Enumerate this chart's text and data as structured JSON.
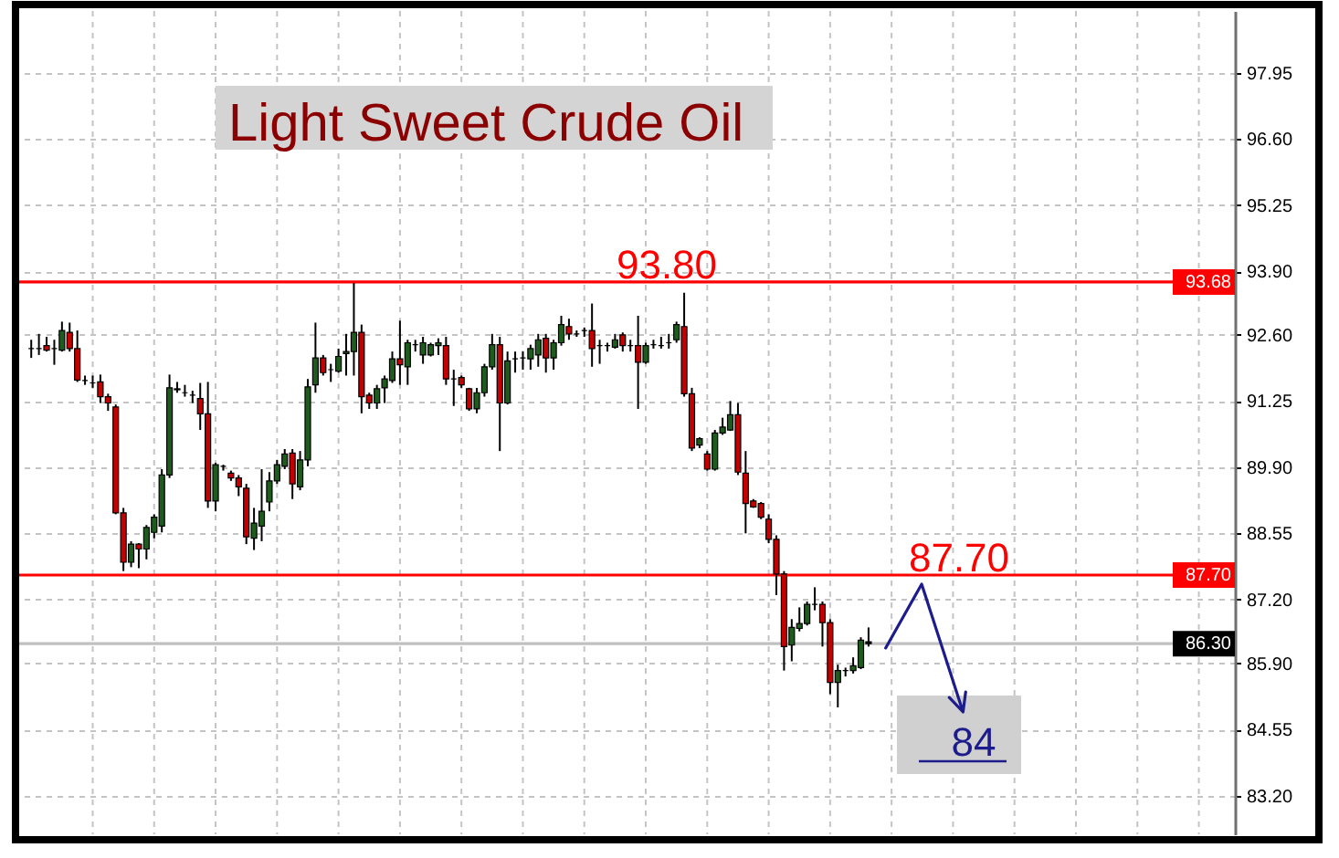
{
  "chart_data": {
    "type": "candlestick",
    "title": "Light Sweet Crude Oil",
    "categories": [
      null,
      null,
      null,
      null,
      null,
      null,
      null,
      null,
      null,
      null,
      null,
      null,
      null,
      null,
      null,
      null,
      null,
      null,
      null,
      null,
      null,
      null,
      null,
      null,
      null,
      null,
      null,
      null,
      null,
      null,
      null,
      null,
      null,
      null,
      null,
      null,
      null,
      null,
      null,
      null,
      null,
      null,
      null,
      null,
      null,
      null,
      null,
      null,
      null,
      null,
      null,
      null,
      null,
      null,
      null,
      null,
      null,
      null,
      null,
      null,
      null,
      null,
      null,
      null,
      null,
      null,
      null,
      null,
      null,
      null,
      null,
      null,
      null,
      null,
      null,
      null,
      null,
      null,
      null,
      null,
      null,
      null,
      null,
      null,
      null,
      null,
      null,
      null,
      null,
      null,
      null,
      null,
      null,
      null,
      null,
      null,
      null,
      null,
      null,
      null,
      null,
      null,
      null,
      null,
      null,
      null,
      null,
      null,
      null,
      null,
      null,
      null,
      null,
      null,
      null,
      null,
      null,
      null,
      null,
      null,
      null,
      null,
      null,
      null,
      null,
      null,
      null,
      null,
      null,
      null,
      null,
      null,
      null,
      null,
      null,
      null,
      null,
      null,
      null,
      null,
      null,
      null,
      null,
      null,
      null,
      null,
      null,
      null,
      null,
      null,
      null,
      null,
      null,
      null,
      null,
      null
    ],
    "ohlc": [
      [
        92.32,
        92.5,
        92.13,
        92.32
      ],
      [
        92.32,
        92.62,
        92.19,
        92.32
      ],
      [
        92.38,
        92.56,
        92.26,
        92.29
      ],
      [
        92.32,
        92.5,
        91.99,
        92.32
      ],
      [
        92.29,
        92.87,
        92.26,
        92.69
      ],
      [
        92.65,
        92.85,
        92.26,
        92.32
      ],
      [
        92.32,
        92.69,
        91.64,
        91.68
      ],
      [
        91.67,
        91.77,
        91.58,
        91.67
      ],
      [
        91.62,
        91.77,
        91.52,
        91.62
      ],
      [
        91.64,
        91.79,
        91.21,
        91.34
      ],
      [
        91.34,
        91.4,
        91.05,
        91.21
      ],
      [
        91.13,
        91.18,
        88.94,
        88.97
      ],
      [
        88.97,
        89.07,
        87.78,
        87.96
      ],
      [
        87.96,
        88.39,
        87.86,
        88.33
      ],
      [
        88.33,
        88.35,
        87.84,
        88.23
      ],
      [
        88.23,
        88.72,
        88.02,
        88.67
      ],
      [
        88.57,
        88.94,
        88.45,
        88.88
      ],
      [
        88.7,
        89.86,
        88.57,
        89.74
      ],
      [
        89.74,
        91.79,
        89.68,
        91.52
      ],
      [
        91.5,
        91.64,
        91.42,
        91.48
      ],
      [
        91.42,
        91.58,
        91.34,
        91.42
      ],
      [
        91.37,
        91.46,
        91.21,
        91.37
      ],
      [
        91.3,
        91.62,
        90.66,
        90.99
      ],
      [
        90.99,
        91.64,
        89.07,
        89.21
      ],
      [
        89.21,
        89.99,
        89.0,
        89.95
      ],
      [
        89.92,
        89.95,
        89.83,
        89.92
      ],
      [
        89.78,
        89.83,
        89.62,
        89.68
      ],
      [
        89.68,
        89.74,
        89.31,
        89.5
      ],
      [
        89.47,
        89.56,
        88.33,
        88.48
      ],
      [
        88.45,
        89.07,
        88.21,
        88.76
      ],
      [
        88.7,
        89.86,
        88.39,
        89.0
      ],
      [
        89.19,
        89.8,
        89.0,
        89.62
      ],
      [
        89.62,
        90.05,
        89.56,
        89.95
      ],
      [
        89.92,
        90.27,
        89.86,
        90.17
      ],
      [
        90.19,
        90.27,
        89.25,
        89.56
      ],
      [
        89.5,
        90.23,
        89.43,
        90.05
      ],
      [
        90.05,
        91.7,
        89.92,
        91.54
      ],
      [
        91.58,
        92.85,
        91.42,
        92.13
      ],
      [
        92.13,
        92.19,
        91.77,
        91.83
      ],
      [
        91.89,
        92.01,
        91.64,
        91.89
      ],
      [
        91.86,
        92.32,
        91.83,
        92.16
      ],
      [
        92.22,
        92.62,
        91.77,
        92.26
      ],
      [
        92.26,
        93.66,
        91.77,
        92.65
      ],
      [
        92.65,
        92.81,
        91.0,
        91.34
      ],
      [
        91.37,
        91.42,
        91.09,
        91.21
      ],
      [
        91.21,
        91.58,
        91.09,
        91.5
      ],
      [
        91.52,
        91.77,
        91.21,
        91.7
      ],
      [
        91.67,
        92.26,
        91.62,
        92.11
      ],
      [
        92.11,
        92.89,
        91.58,
        91.99
      ],
      [
        91.95,
        92.5,
        91.58,
        92.44
      ],
      [
        92.4,
        92.5,
        92.26,
        92.4
      ],
      [
        92.19,
        92.56,
        92.01,
        92.44
      ],
      [
        92.19,
        92.44,
        92.16,
        92.4
      ],
      [
        92.38,
        92.53,
        92.19,
        92.44
      ],
      [
        92.38,
        92.56,
        91.58,
        91.7
      ],
      [
        91.7,
        91.89,
        91.15,
        91.7
      ],
      [
        91.73,
        91.77,
        91.52,
        91.58
      ],
      [
        91.5,
        91.52,
        91.05,
        91.09
      ],
      [
        91.09,
        91.52,
        91.0,
        91.42
      ],
      [
        91.42,
        92.01,
        91.34,
        91.95
      ],
      [
        91.95,
        92.62,
        91.89,
        92.4
      ],
      [
        92.4,
        92.56,
        90.23,
        91.21
      ],
      [
        91.21,
        92.26,
        91.18,
        92.07
      ],
      [
        92.11,
        92.26,
        91.83,
        92.11
      ],
      [
        92.13,
        92.26,
        91.89,
        92.13
      ],
      [
        92.11,
        92.4,
        91.89,
        92.32
      ],
      [
        92.19,
        92.62,
        91.95,
        92.5
      ],
      [
        92.53,
        92.62,
        91.83,
        92.13
      ],
      [
        92.13,
        92.5,
        91.89,
        92.44
      ],
      [
        92.44,
        92.99,
        92.38,
        92.81
      ],
      [
        92.77,
        92.93,
        92.5,
        92.62
      ],
      [
        92.62,
        92.69,
        92.56,
        92.62
      ],
      [
        92.69,
        92.75,
        92.56,
        92.69
      ],
      [
        92.69,
        93.24,
        91.95,
        92.32
      ],
      [
        92.38,
        92.5,
        92.01,
        92.38
      ],
      [
        92.38,
        92.44,
        92.26,
        92.38
      ],
      [
        92.35,
        92.62,
        92.32,
        92.5
      ],
      [
        92.6,
        92.65,
        92.26,
        92.38
      ],
      [
        92.38,
        92.5,
        92.26,
        92.38
      ],
      [
        92.38,
        92.99,
        91.09,
        92.04
      ],
      [
        92.04,
        92.44,
        92.01,
        92.38
      ],
      [
        92.4,
        92.5,
        92.32,
        92.4
      ],
      [
        92.38,
        92.56,
        92.32,
        92.38
      ],
      [
        92.44,
        92.62,
        92.32,
        92.44
      ],
      [
        92.5,
        92.87,
        92.44,
        92.81
      ],
      [
        92.77,
        93.46,
        91.34,
        91.4
      ],
      [
        91.4,
        91.52,
        90.23,
        90.29
      ],
      [
        90.35,
        90.51,
        90.29,
        90.48
      ],
      [
        90.17,
        90.23,
        89.83,
        89.86
      ],
      [
        89.86,
        90.66,
        89.83,
        90.6
      ],
      [
        90.6,
        90.91,
        90.56,
        90.72
      ],
      [
        90.66,
        91.25,
        90.64,
        90.97
      ],
      [
        90.97,
        91.21,
        89.74,
        89.8
      ],
      [
        89.78,
        90.23,
        88.55,
        89.16
      ],
      [
        89.21,
        89.25,
        89.07,
        89.09
      ],
      [
        89.16,
        89.19,
        88.84,
        88.88
      ],
      [
        88.84,
        88.94,
        88.35,
        88.43
      ],
      [
        88.43,
        88.51,
        87.29,
        87.72
      ],
      [
        87.72,
        87.78,
        85.75,
        86.24
      ],
      [
        86.27,
        86.8,
        85.94,
        86.63
      ],
      [
        86.61,
        87.04,
        86.55,
        86.71
      ],
      [
        86.71,
        87.16,
        86.67,
        87.1
      ],
      [
        87.1,
        87.45,
        86.98,
        87.1
      ],
      [
        87.1,
        87.16,
        86.24,
        86.73
      ],
      [
        86.73,
        86.8,
        85.27,
        85.51
      ],
      [
        85.51,
        85.87,
        85.0,
        85.75
      ],
      [
        85.75,
        85.81,
        85.63,
        85.75
      ],
      [
        85.75,
        86.02,
        85.69,
        85.85
      ],
      [
        85.81,
        86.43,
        85.78,
        86.37
      ],
      [
        86.34,
        86.63,
        86.24,
        86.3
      ],
      null,
      null,
      null,
      null,
      null,
      null,
      null,
      null,
      null,
      null,
      null,
      null,
      null,
      null,
      null,
      null,
      null,
      null,
      null,
      null,
      null,
      null,
      null,
      null,
      null,
      null,
      null,
      null,
      null,
      null,
      null,
      null,
      null,
      null,
      null,
      null,
      null,
      null,
      null,
      null,
      null,
      null,
      null,
      null,
      null,
      null
    ],
    "colors": [
      "#000000",
      "#000000",
      "#c40000",
      "#000000",
      "#1d5c1d",
      "#c40000",
      "#c40000",
      "#000000",
      "#000000",
      "#c40000",
      "#c40000",
      "#c40000",
      "#c40000",
      "#1d5c1d",
      "#c40000",
      "#1d5c1d",
      "#1d5c1d",
      "#1d5c1d",
      "#1d5c1d",
      "#000000",
      "#000000",
      "#000000",
      "#c40000",
      "#c40000",
      "#1d5c1d",
      "#000000",
      "#c40000",
      "#c40000",
      "#c40000",
      "#1d5c1d",
      "#1d5c1d",
      "#1d5c1d",
      "#1d5c1d",
      "#1d5c1d",
      "#c40000",
      "#1d5c1d",
      "#1d5c1d",
      "#1d5c1d",
      "#c40000",
      "#000000",
      "#1d5c1d",
      "#1d5c1d",
      "#1d5c1d",
      "#c40000",
      "#c40000",
      "#1d5c1d",
      "#1d5c1d",
      "#1d5c1d",
      "#c40000",
      "#1d5c1d",
      "#000000",
      "#1d5c1d",
      "#1d5c1d",
      "#1d5c1d",
      "#c40000",
      "#000000",
      "#c40000",
      "#c40000",
      "#1d5c1d",
      "#1d5c1d",
      "#1d5c1d",
      "#c40000",
      "#1d5c1d",
      "#000000",
      "#000000",
      "#1d5c1d",
      "#1d5c1d",
      "#c40000",
      "#1d5c1d",
      "#1d5c1d",
      "#c40000",
      "#000000",
      "#000000",
      "#c40000",
      "#000000",
      "#000000",
      "#1d5c1d",
      "#c40000",
      "#000000",
      "#c40000",
      "#1d5c1d",
      "#000000",
      "#000000",
      "#000000",
      "#1d5c1d",
      "#c40000",
      "#c40000",
      "#1d5c1d",
      "#c40000",
      "#1d5c1d",
      "#1d5c1d",
      "#1d5c1d",
      "#c40000",
      "#c40000",
      "#c40000",
      "#c40000",
      "#c40000",
      "#c40000",
      "#c40000",
      "#1d5c1d",
      "#1d5c1d",
      "#1d5c1d",
      "#000000",
      "#c40000",
      "#c40000",
      "#1d5c1d",
      "#000000",
      "#1d5c1d",
      "#1d5c1d",
      "#000000",
      null,
      null,
      null,
      null,
      null,
      null,
      null,
      null,
      null,
      null,
      null,
      null,
      null,
      null,
      null,
      null,
      null,
      null,
      null,
      null,
      null,
      null,
      null,
      null,
      null,
      null,
      null,
      null,
      null,
      null,
      null,
      null,
      null,
      null,
      null,
      null,
      null,
      null,
      null,
      null,
      null,
      null,
      null,
      null,
      null,
      null
    ],
    "ylim": [
      82.41,
      99.21
    ],
    "yticks": [
      97.95,
      {
        "value": 96.6,
        "label": "96.60"
      },
      95.25,
      {
        "value": 93.9,
        "label": "93.90"
      },
      {
        "value": 92.6,
        "label": "92.60"
      },
      91.25,
      {
        "value": 89.9,
        "label": "89.90"
      },
      88.55,
      {
        "value": 87.2,
        "label": "87.20"
      },
      {
        "value": 85.9,
        "label": "85.90"
      },
      84.55,
      {
        "value": 83.2,
        "label": "83.20"
      }
    ],
    "grid": true,
    "tick_labels": "y",
    "ref_lines": [
      {
        "axis": "y",
        "value": 93.68,
        "label": "93.68",
        "color": "#ff0000"
      },
      {
        "axis": "y",
        "value": 87.7,
        "label": "87.70",
        "color": "#ff0000"
      },
      {
        "axis": "y",
        "value": 86.3,
        "label": "86.30",
        "color": "#c0c0c0"
      }
    ],
    "annotations": [
      {
        "text": "93.80",
        "y": 93.68
      },
      {
        "text": "87.70",
        "y": 87.7
      },
      "84"
    ]
  }
}
